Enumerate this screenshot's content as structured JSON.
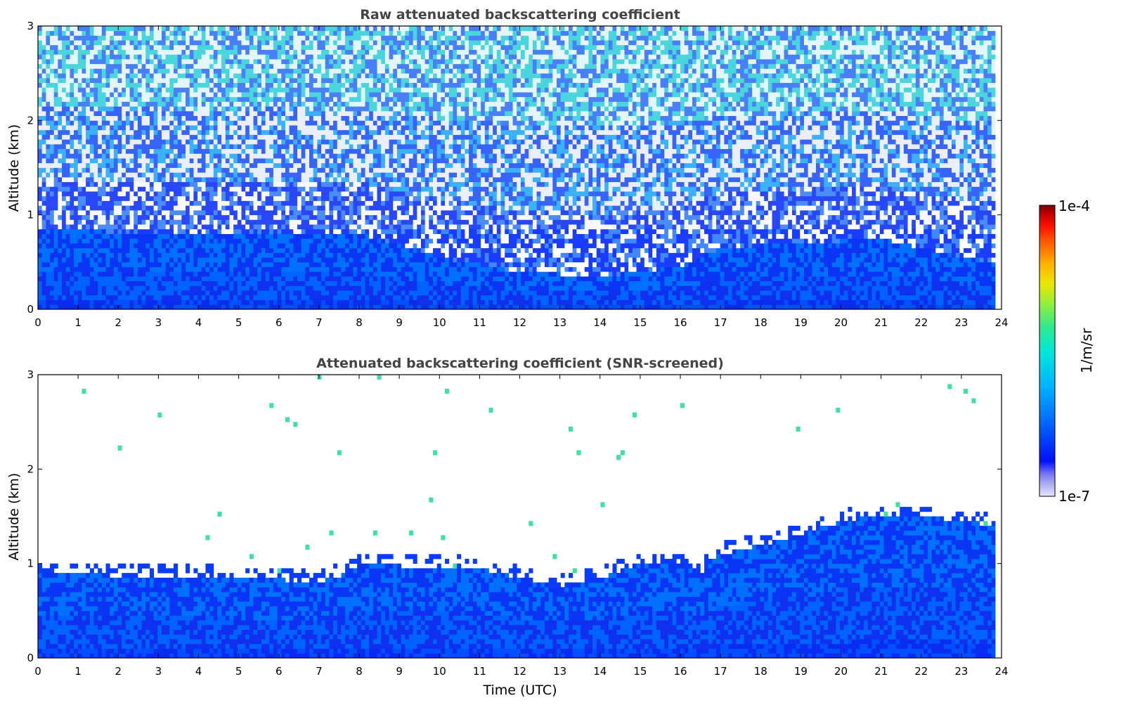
{
  "chart_data": [
    {
      "type": "heatmap",
      "title": "Raw attenuated backscattering coefficient",
      "xlabel": "",
      "ylabel": "Altitude (km)",
      "xlim": [
        0,
        24
      ],
      "ylim": [
        0,
        3
      ],
      "x_ticks": [
        "0",
        "1",
        "2",
        "3",
        "4",
        "5",
        "6",
        "7",
        "8",
        "9",
        "10",
        "11",
        "12",
        "13",
        "14",
        "15",
        "16",
        "17",
        "18",
        "19",
        "20",
        "21",
        "22",
        "23",
        "24"
      ],
      "y_ticks": [
        "0",
        "1",
        "2",
        "3"
      ],
      "grid": false,
      "field": {
        "description_units": "1/m/sr",
        "boundary_layer_top_km": [
          [
            0,
            0.85
          ],
          [
            2,
            0.82
          ],
          [
            4,
            0.8
          ],
          [
            6,
            0.82
          ],
          [
            8,
            0.8
          ],
          [
            10,
            0.55
          ],
          [
            12,
            0.4
          ],
          [
            14,
            0.35
          ],
          [
            16,
            0.45
          ],
          [
            17,
            0.65
          ],
          [
            19,
            0.7
          ],
          [
            21,
            0.75
          ],
          [
            23,
            0.55
          ],
          [
            24,
            0.5
          ]
        ],
        "noise_above_boundary_layer": true
      }
    },
    {
      "type": "heatmap",
      "title": "Attenuated backscattering coefficient (SNR-screened)",
      "xlabel": "Time (UTC)",
      "ylabel": "Altitude (km)",
      "xlim": [
        0,
        24
      ],
      "ylim": [
        0,
        3
      ],
      "x_ticks": [
        "0",
        "1",
        "2",
        "3",
        "4",
        "5",
        "6",
        "7",
        "8",
        "9",
        "10",
        "11",
        "12",
        "13",
        "14",
        "15",
        "16",
        "17",
        "18",
        "19",
        "20",
        "21",
        "22",
        "23",
        "24"
      ],
      "y_ticks": [
        "0",
        "1",
        "2",
        "3"
      ],
      "grid": false,
      "field": {
        "description_units": "1/m/sr",
        "screened_top_km": [
          [
            0,
            0.9
          ],
          [
            2,
            0.87
          ],
          [
            4,
            0.86
          ],
          [
            6,
            0.83
          ],
          [
            7,
            0.8
          ],
          [
            7.7,
            0.9
          ],
          [
            8,
            0.98
          ],
          [
            10,
            0.97
          ],
          [
            11,
            0.95
          ],
          [
            12,
            0.85
          ],
          [
            13,
            0.75
          ],
          [
            14,
            0.85
          ],
          [
            15,
            1.0
          ],
          [
            16,
            1.0
          ],
          [
            16.5,
            0.9
          ],
          [
            17,
            1.1
          ],
          [
            18,
            1.2
          ],
          [
            19,
            1.3
          ],
          [
            20,
            1.45
          ],
          [
            21,
            1.5
          ],
          [
            22,
            1.5
          ],
          [
            23,
            1.45
          ],
          [
            24,
            1.4
          ]
        ]
      }
    }
  ],
  "colorbar": {
    "max_label": "1e-4",
    "min_label": "1e-7",
    "label": "1/m/sr",
    "colormap": [
      "#e6e6ff",
      "#b0b0f0",
      "#7070f0",
      "#0010ff",
      "#0066ff",
      "#00b4ff",
      "#00e8d8",
      "#30e890",
      "#90f040",
      "#e8e800",
      "#ffb000",
      "#ff6000",
      "#ff1000",
      "#c00000",
      "#7a0000"
    ]
  }
}
